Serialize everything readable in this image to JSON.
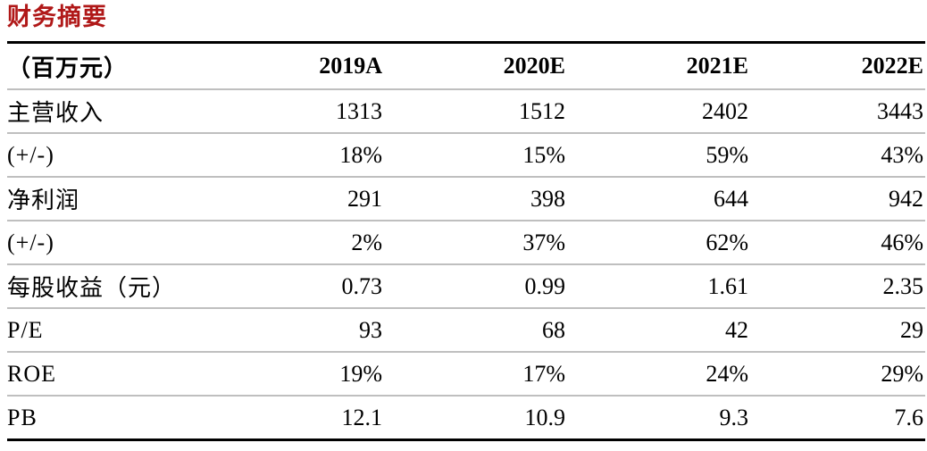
{
  "title": "财务摘要",
  "colors": {
    "accent": "#b01818",
    "thick_rule": "#000000",
    "row_separator": "#bfbfbf"
  },
  "table": {
    "unit_header": "（百万元）",
    "columns": [
      "2019A",
      "2020E",
      "2021E",
      "2022E"
    ],
    "rows": [
      {
        "label": "主营收入",
        "values": [
          "1313",
          "1512",
          "2402",
          "3443"
        ]
      },
      {
        "label": "(+/-)",
        "values": [
          "18%",
          "15%",
          "59%",
          "43%"
        ]
      },
      {
        "label": "净利润",
        "values": [
          "291",
          "398",
          "644",
          "942"
        ]
      },
      {
        "label": "(+/-)",
        "values": [
          "2%",
          "37%",
          "62%",
          "46%"
        ]
      },
      {
        "label": "每股收益（元）",
        "values": [
          "0.73",
          "0.99",
          "1.61",
          "2.35"
        ]
      },
      {
        "label": "P/E",
        "values": [
          "93",
          "68",
          "42",
          "29"
        ]
      },
      {
        "label": "ROE",
        "values": [
          "19%",
          "17%",
          "24%",
          "29%"
        ]
      },
      {
        "label": "PB",
        "values": [
          "12.1",
          "10.9",
          "9.3",
          "7.6"
        ]
      }
    ]
  }
}
